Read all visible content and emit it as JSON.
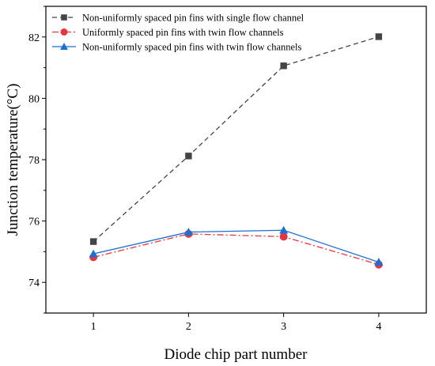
{
  "chart_data": {
    "type": "line",
    "xlabel": "Diode chip part number",
    "ylabel": "Junction temperature(°C)",
    "x": [
      1,
      2,
      3,
      4
    ],
    "x_ticks": [
      "1",
      "2",
      "3",
      "4"
    ],
    "xlim": [
      0.5,
      4.5
    ],
    "y_ticks": [
      "74",
      "76",
      "78",
      "80",
      "82"
    ],
    "ylim": [
      73,
      83
    ],
    "grid": false,
    "legend_position": "top-left",
    "series": [
      {
        "name": "Non-uniformly spaced pin fins with single flow channel",
        "values": [
          75.33,
          78.12,
          81.06,
          82.01
        ],
        "color": "#444444",
        "marker": "square",
        "line_style": "dashed"
      },
      {
        "name": "Uniformly spaced pin fins with twin flow channels",
        "values": [
          74.82,
          75.58,
          75.49,
          74.58
        ],
        "color": "#e8343c",
        "marker": "circle",
        "line_style": "dash-dot"
      },
      {
        "name": "Non-uniformly spaced pin fins with twin flow channels",
        "values": [
          74.93,
          75.64,
          75.7,
          74.66
        ],
        "color": "#1f6fd0",
        "marker": "triangle",
        "line_style": "solid"
      }
    ]
  }
}
